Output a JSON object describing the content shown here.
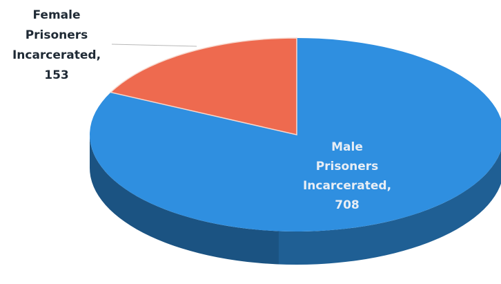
{
  "chart_data": {
    "type": "pie",
    "style": "3d",
    "slices": [
      {
        "name": "Male Prisoners Incarcerated",
        "value": 708,
        "label_lines": [
          "Male",
          "Prisoners",
          "Incarcerated,",
          "708"
        ],
        "color": "#2f8fe0",
        "side_color": "#1f5f94"
      },
      {
        "name": "Female Prisoners Incarcerated",
        "value": 153,
        "label_lines": [
          "Female",
          "Prisoners",
          "Incarcerated,",
          "153"
        ],
        "color": "#ee6a4f",
        "side_color": "#b3452f"
      }
    ]
  }
}
